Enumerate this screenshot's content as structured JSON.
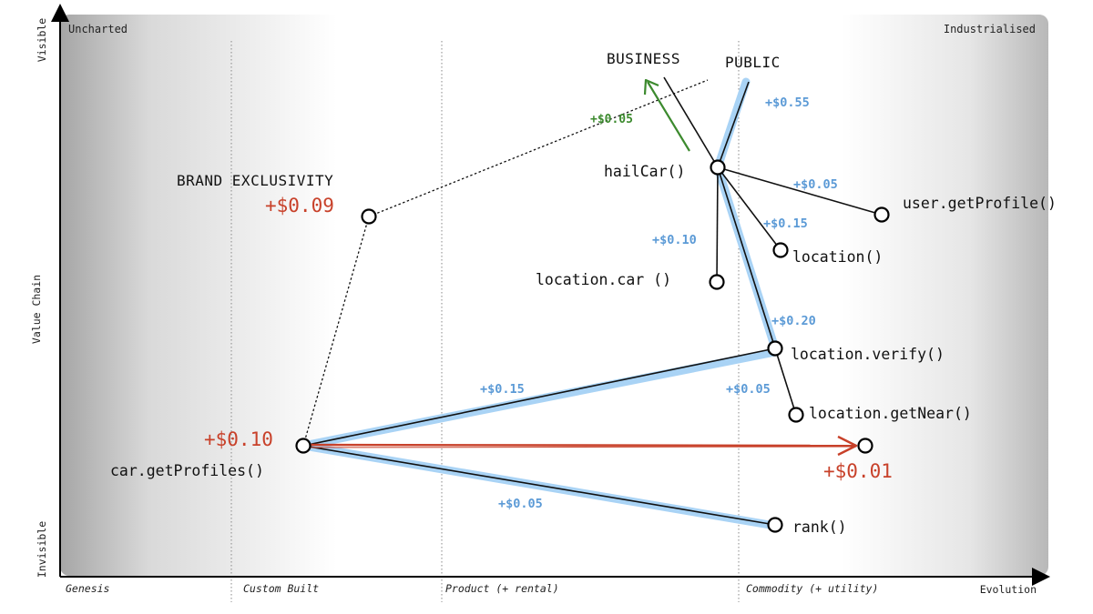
{
  "map": {
    "corner_uncharted": "Uncharted",
    "corner_industrialised": "Industrialised",
    "y_axis": {
      "top": "Visible",
      "middle": "Value Chain",
      "bottom": "Invisible"
    },
    "x_axis": {
      "end": "Evolution"
    },
    "stages": [
      "Genesis",
      "Custom Built",
      "Product (+ rental)",
      "Commodity (+ utility)"
    ]
  },
  "labels": {
    "business": "BUSINESS",
    "public": "PUBLIC",
    "brand_exclusivity": "BRAND EXCLUSIVITY"
  },
  "nodes": {
    "hailCar": "hailCar()",
    "user_getProfile": "user.getProfile()",
    "location": "location()",
    "location_car": "location.car ()",
    "location_verify": "location.verify()",
    "location_getNear": "location.getNear()",
    "car_getProfiles": "car.getProfiles()",
    "rank": "rank()"
  },
  "costs": {
    "brand": "+$0.09",
    "car_profiles": "+$0.10",
    "red_target": "+$0.01",
    "green_business": "+$0.05",
    "public": "+$0.55",
    "user_getProfile": "+$0.05",
    "location": "+$0.15",
    "location_car": "+$0.10",
    "location_verify": "+$0.20",
    "location_getNear": "+$0.05",
    "car_to_verify": "+$0.15",
    "car_to_rank": "+$0.05"
  },
  "colors": {
    "cost_blue": "#5b9ad6",
    "cost_red": "#c8412a",
    "cost_green": "#3c8a2e",
    "highlight": "#a9d3f5"
  }
}
